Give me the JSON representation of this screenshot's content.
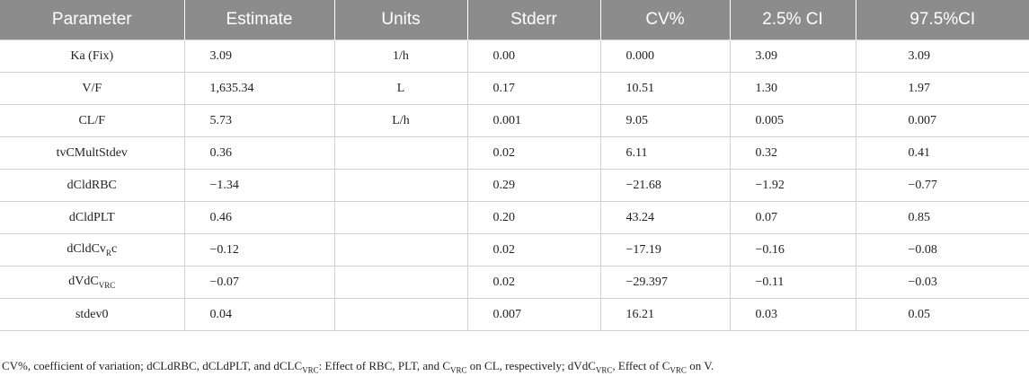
{
  "table": {
    "header": [
      "Parameter",
      "Estimate",
      "Units",
      "Stderr",
      "CV%",
      "2.5% CI",
      "97.5%CI"
    ],
    "rows": [
      [
        "Ka (Fix)",
        "3.09",
        "1/h",
        "0.00",
        "0.000",
        "3.09",
        "3.09"
      ],
      [
        "V/F",
        "1,635.34",
        "L",
        "0.17",
        "10.51",
        "1.30",
        "1.97"
      ],
      [
        "CL/F",
        "5.73",
        "L/h",
        "0.001",
        "9.05",
        "0.005",
        "0.007"
      ],
      [
        "tvCMultStdev",
        "0.36",
        "",
        "0.02",
        "6.11",
        "0.32",
        "0.41"
      ],
      [
        "dCldRBC",
        "−1.34",
        "",
        "0.29",
        "−21.68",
        "−1.92",
        "−0.77"
      ],
      [
        "dCldPLT",
        "0.46",
        "",
        "0.20",
        "43.24",
        "0.07",
        "0.85"
      ],
      [
        [
          {
            "text": "dCldCv"
          },
          {
            "sub": "R"
          },
          {
            "text": "c"
          }
        ],
        "−0.12",
        "",
        "0.02",
        "−17.19",
        "−0.16",
        "−0.08"
      ],
      [
        [
          {
            "text": "dVdC"
          },
          {
            "sub": "VRC"
          }
        ],
        "−0.07",
        "",
        "0.02",
        "−29.397",
        "−0.11",
        "−0.03"
      ],
      [
        "stdev0",
        "0.04",
        "",
        "0.007",
        "16.21",
        "0.03",
        "0.05"
      ]
    ]
  },
  "footnote": [
    {
      "text": "CV%, coefficient of variation; dCLdRBC, dCLdPLT, and dCLC"
    },
    {
      "sub": "VRC"
    },
    {
      "text": ": Effect of RBC, PLT, and C"
    },
    {
      "sub": "VRC"
    },
    {
      "text": " on CL, respectively; dVdC"
    },
    {
      "sub": "VRC"
    },
    {
      "text": ", Effect of C"
    },
    {
      "sub": "VRC"
    },
    {
      "text": " on V."
    }
  ]
}
